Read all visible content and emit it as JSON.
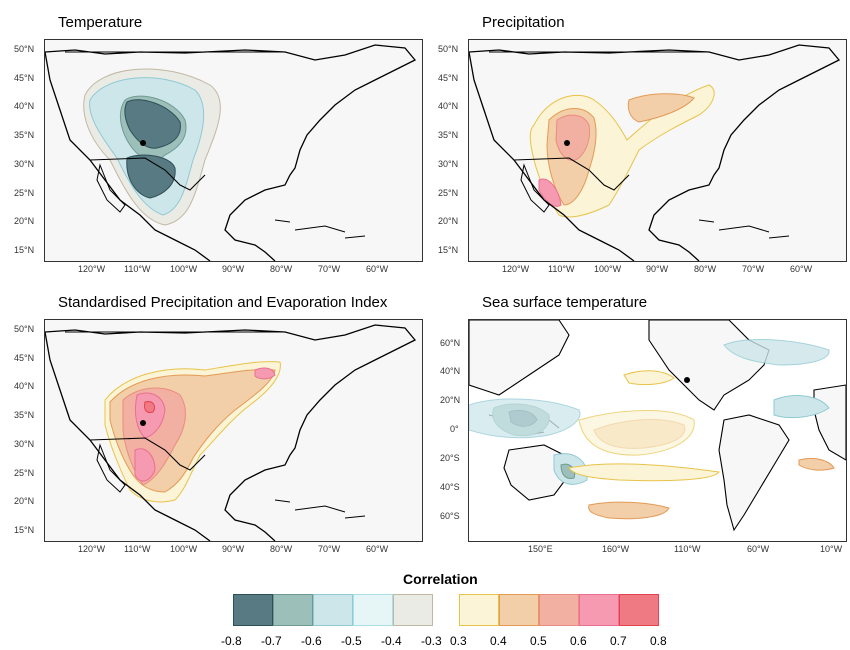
{
  "panels": {
    "temperature": {
      "title": "Temperature",
      "lat_ticks": [
        "50°N",
        "45°N",
        "40°N",
        "35°N",
        "30°N",
        "25°N",
        "20°N",
        "15°N"
      ],
      "lon_ticks": [
        "120°W",
        "110°W",
        "100°W",
        "90°W",
        "80°W",
        "70°W",
        "60°W"
      ]
    },
    "precipitation": {
      "title": "Precipitation",
      "lat_ticks": [
        "50°N",
        "45°N",
        "40°N",
        "35°N",
        "30°N",
        "25°N",
        "20°N",
        "15°N"
      ],
      "lon_ticks": [
        "120°W",
        "110°W",
        "100°W",
        "90°W",
        "80°W",
        "70°W",
        "60°W"
      ]
    },
    "spei": {
      "title": "Standardised Precipitation and Evaporation Index",
      "lat_ticks": [
        "50°N",
        "45°N",
        "40°N",
        "35°N",
        "30°N",
        "25°N",
        "20°N",
        "15°N"
      ],
      "lon_ticks": [
        "120°W",
        "110°W",
        "100°W",
        "90°W",
        "80°W",
        "70°W",
        "60°W"
      ]
    },
    "sst": {
      "title": "Sea surface temperature",
      "lat_ticks": [
        "60°N",
        "40°N",
        "20°N",
        "0°",
        "20°S",
        "40°S",
        "60°S"
      ],
      "lon_ticks": [
        "150°E",
        "160°W",
        "110°W",
        "60°W",
        "10°W"
      ]
    }
  },
  "legend": {
    "title": "Correlation",
    "negative_colors": [
      "#587a82",
      "#9dbfb9",
      "#cde6ea",
      "#e6f6f7",
      "#ebebe6"
    ],
    "negative_borders": [
      "#2f4f57",
      "#6f9a93",
      "#8fc9d4",
      "#aadfe6",
      "#c0b8a2"
    ],
    "positive_colors": [
      "#fbf4d6",
      "#f2cfa8",
      "#f2b0a2",
      "#f59ab0",
      "#f07a84"
    ],
    "positive_borders": [
      "#e8c34a",
      "#e39a55",
      "#e88d7f",
      "#ea6f93",
      "#e6414f"
    ],
    "negative_labels": [
      "-0.8",
      "-0.7",
      "-0.6",
      "-0.5",
      "-0.4",
      "-0.3"
    ],
    "positive_labels": [
      "0.3",
      "0.4",
      "0.5",
      "0.6",
      "0.7",
      "0.8"
    ]
  }
}
